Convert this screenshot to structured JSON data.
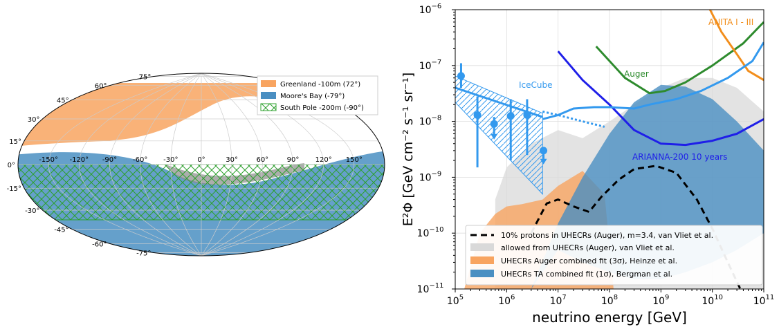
{
  "sky_map": {
    "lon_ticks": [
      "-150°",
      "-120°",
      "-90°",
      "-60°",
      "-30°",
      "0°",
      "30°",
      "60°",
      "90°",
      "120°",
      "150°"
    ],
    "lat_ticks": [
      {
        "label": "75°",
        "lat": 75
      },
      {
        "label": "60°",
        "lat": 60
      },
      {
        "label": "45°",
        "lat": 45
      },
      {
        "label": "30°",
        "lat": 30
      },
      {
        "label": "15°",
        "lat": 15
      },
      {
        "label": "0°",
        "lat": 0
      },
      {
        "label": "-15°",
        "lat": -15
      },
      {
        "label": "-30°",
        "lat": -30
      },
      {
        "label": "-45°",
        "lat": -45
      },
      {
        "label": "-60°",
        "lat": -60
      },
      {
        "label": "-75°",
        "lat": -75
      }
    ],
    "legend": [
      {
        "label": "Greenland -100m (72$^\\circ$)",
        "display": "Greenland -100m (72°)",
        "color": "#f8a460",
        "style": "fill"
      },
      {
        "label": "Moore's Bay (-79$^\\circ$)",
        "display": "Moore's Bay (-79°)",
        "color": "#4a8fc2",
        "style": "fill"
      },
      {
        "label": "South Pole -200m (-90$^\\circ$)",
        "display": "South Pole -200m (-90°)",
        "color": "#2ca02c",
        "style": "hatch"
      }
    ]
  },
  "chart_data": {
    "type": "line",
    "xlabel": "neutrino energy [GeV]",
    "ylabel": "E²Φ [GeV cm⁻² s⁻¹ sr⁻¹]",
    "xscale": "log",
    "yscale": "log",
    "xlim": [
      100000,
      100000000000
    ],
    "ylim": [
      1e-11,
      1e-06
    ],
    "x_ticks": [
      {
        "base": "10",
        "exp": "5",
        "value": 100000.0
      },
      {
        "base": "10",
        "exp": "6",
        "value": 1000000.0
      },
      {
        "base": "10",
        "exp": "7",
        "value": 10000000.0
      },
      {
        "base": "10",
        "exp": "8",
        "value": 100000000.0
      },
      {
        "base": "10",
        "exp": "9",
        "value": 1000000000.0
      },
      {
        "base": "10",
        "exp": "10",
        "value": 10000000000.0
      },
      {
        "base": "10",
        "exp": "11",
        "value": 100000000000.0
      }
    ],
    "y_ticks": [
      {
        "base": "10",
        "exp": "−11",
        "value": 1e-11
      },
      {
        "base": "10",
        "exp": "−10",
        "value": 1e-10
      },
      {
        "base": "10",
        "exp": "−9",
        "value": 1e-09
      },
      {
        "base": "10",
        "exp": "−8",
        "value": 1e-08
      },
      {
        "base": "10",
        "exp": "−7",
        "value": 1e-07
      },
      {
        "base": "10",
        "exp": "−6",
        "value": 1e-06
      }
    ],
    "grid": true,
    "legend_position": "lower-left",
    "bands": [
      {
        "name": "allowed from UHECRs (Auger), van Vliet et al.",
        "color": "#d9d9d9",
        "x": [
          600000.0,
          1000000.0,
          3000000.0,
          10000000.0,
          30000000.0,
          100000000.0,
          300000000.0,
          1000000000.0,
          3000000000.0,
          10000000000.0,
          30000000000.0,
          100000000000.0
        ],
        "lower": [
          1e-11,
          1e-11,
          1e-11,
          1e-11,
          1e-11,
          1e-11,
          1e-11,
          1e-11,
          1e-11,
          1e-11,
          1e-11,
          1e-11
        ],
        "upper": [
          4e-10,
          1.5e-09,
          4e-09,
          7e-09,
          5e-09,
          1e-08,
          2e-08,
          4e-08,
          6e-08,
          6e-08,
          4e-08,
          1.5e-08
        ]
      },
      {
        "name": "UHECRs Auger combined fit (3σ), Heinze et al.",
        "color": "#f8a460",
        "x": [
          150000.0,
          300000.0,
          600000.0,
          1000000.0,
          2000000.0,
          5000000.0,
          10000000.0,
          30000000.0,
          80000000.0,
          120000000.0
        ],
        "lower": [
          1e-11,
          1e-11,
          1e-11,
          1e-11,
          1e-11,
          1e-11,
          1e-11,
          1e-11,
          1e-11,
          1e-11
        ],
        "upper": [
          1e-11,
          1e-10,
          2.2e-10,
          3e-10,
          3.3e-10,
          4e-10,
          7e-10,
          1.3e-09,
          5e-10,
          1e-11
        ]
      },
      {
        "name": "UHECRs TA combined fit (1σ), Bergman et al.",
        "color": "#4a8fc2",
        "x": [
          3000000.0,
          10000000.0,
          30000000.0,
          100000000.0,
          300000000.0,
          1000000000.0,
          3000000000.0,
          10000000000.0,
          30000000000.0,
          100000000000.0
        ],
        "lower": [
          1e-11,
          5e-11,
          3e-11,
          2e-11,
          1.5e-11,
          1.5e-11,
          2e-11,
          3e-11,
          5e-11,
          1e-10
        ],
        "upper": [
          1e-11,
          1.5e-10,
          1e-09,
          6e-09,
          2.2e-08,
          4.5e-08,
          4.2e-08,
          2.5e-08,
          1e-08,
          3e-09
        ]
      }
    ],
    "series": [
      {
        "name": "10% protons in UHECRs (Auger), m=3.4, van Vliet et al.",
        "color": "#000000",
        "dash": "9,6",
        "x": [
          3000000.0,
          6000000.0,
          10000000.0,
          20000000.0,
          40000000.0,
          70000000.0,
          150000000.0,
          300000000.0,
          800000000.0,
          2000000000.0,
          5000000000.0,
          10000000000.0,
          20000000000.0,
          35000000000.0
        ],
        "y": [
          1e-10,
          3.4e-10,
          4e-10,
          3e-10,
          2.4e-10,
          4.5e-10,
          9e-10,
          1.4e-09,
          1.6e-09,
          1.2e-09,
          4e-10,
          1.2e-10,
          3e-11,
          1e-11
        ]
      },
      {
        "name": "",
        "color": "#1f1fe8",
        "label": "ARIANNA-200 10 years",
        "x": [
          10000000.0,
          30000000.0,
          100000000.0,
          300000000.0,
          1000000000.0,
          3000000000.0,
          10000000000.0,
          30000000000.0,
          100000000000.0
        ],
        "y": [
          1.8e-07,
          5.5e-08,
          2e-08,
          7e-09,
          4e-09,
          3.8e-09,
          4.5e-09,
          6e-09,
          1.1e-08
        ]
      },
      {
        "name": "",
        "color": "#2e8b2e",
        "label": "Auger",
        "x": [
          55000000.0,
          200000000.0,
          600000000.0,
          1200000000.0,
          3000000000.0,
          10000000000.0,
          40000000000.0,
          100000000000.0
        ],
        "y": [
          2.2e-07,
          6e-08,
          3.2e-08,
          3.5e-08,
          5e-08,
          1e-07,
          2.5e-07,
          6e-07
        ]
      },
      {
        "name": "",
        "color": "#f28e1c",
        "label": "ANITA I - III",
        "x": [
          9000000000.0,
          15000000000.0,
          30000000000.0,
          50000000000.0,
          100000000000.0
        ],
        "y": [
          1e-06,
          4e-07,
          1.6e-07,
          8e-08,
          5.5e-08
        ]
      },
      {
        "name": "",
        "color": "#3399ee",
        "label": "IceCube",
        "x": [
          5000000.0,
          10000000.0,
          20000000.0,
          50000000.0,
          100000000.0,
          300000000.0,
          600000000.0,
          2000000000.0,
          6000000000.0,
          20000000000.0,
          60000000000.0,
          100000000000.0
        ],
        "y": [
          1.1e-08,
          1.3e-08,
          1.7e-08,
          1.8e-08,
          1.8e-08,
          1.7e-08,
          2e-08,
          2.5e-08,
          3.5e-08,
          6e-08,
          1.2e-07,
          2.6e-07
        ]
      },
      {
        "name": "",
        "color": "#3399ee",
        "dash": "3,3",
        "x": [
          5000000.0,
          10000000.0,
          30000000.0,
          80000000.0
        ],
        "y": [
          1.5e-08,
          1.3e-08,
          1e-08,
          8e-09
        ]
      }
    ],
    "icecube_points": [
      {
        "x": 130000.0,
        "y": 6.5e-08,
        "yerr": [
          4e-08,
          1.1e-07
        ],
        "ul": false
      },
      {
        "x": 270000.0,
        "y": 1.3e-08,
        "yerr": [
          1.5e-09,
          2.8e-08
        ],
        "ul": false
      },
      {
        "x": 570000.0,
        "y": 9e-09,
        "yerr": [
          5e-09,
          1.2e-08
        ],
        "ul": true
      },
      {
        "x": 1200000.0,
        "y": 1.25e-08,
        "yerr": [
          2e-09,
          2.5e-08
        ],
        "ul": false
      },
      {
        "x": 2500000.0,
        "y": 1.3e-08,
        "yerr": [
          2.5e-09,
          2.5e-08
        ],
        "ul": false
      },
      {
        "x": 5200000.0,
        "y": 3e-09,
        "yerr": [
          1.8e-09,
          3e-09
        ],
        "ul": true
      }
    ],
    "icecube_fit_box": {
      "x": [
        100000.0,
        5000000.0
      ],
      "upper": [
        6.5e-08,
        1.4e-08
      ],
      "lower": [
        2.2e-08,
        5e-10
      ]
    },
    "legend": [
      {
        "label": "10% protons in UHECRs (Auger), m=3.4, van Vliet et al.",
        "style": "dash",
        "color": "#000000"
      },
      {
        "label": "allowed from UHECRs (Auger), van Vliet et al.",
        "style": "fill",
        "color": "#d9d9d9"
      },
      {
        "label": "UHECRs Auger combined fit (3σ), Heinze et al.",
        "style": "fill",
        "color": "#f8a460"
      },
      {
        "label": "UHECRs TA combined fit (1σ), Bergman et al.",
        "style": "fill",
        "color": "#4a8fc2"
      }
    ],
    "annotations": [
      {
        "text": "ANITA I - III",
        "color": "#f28e1c"
      },
      {
        "text": "Auger",
        "color": "#2e8b2e"
      },
      {
        "text": "IceCube",
        "color": "#3399ee"
      },
      {
        "text": "ARIANNA-200 10 years",
        "color": "#1f1fe8"
      }
    ]
  }
}
